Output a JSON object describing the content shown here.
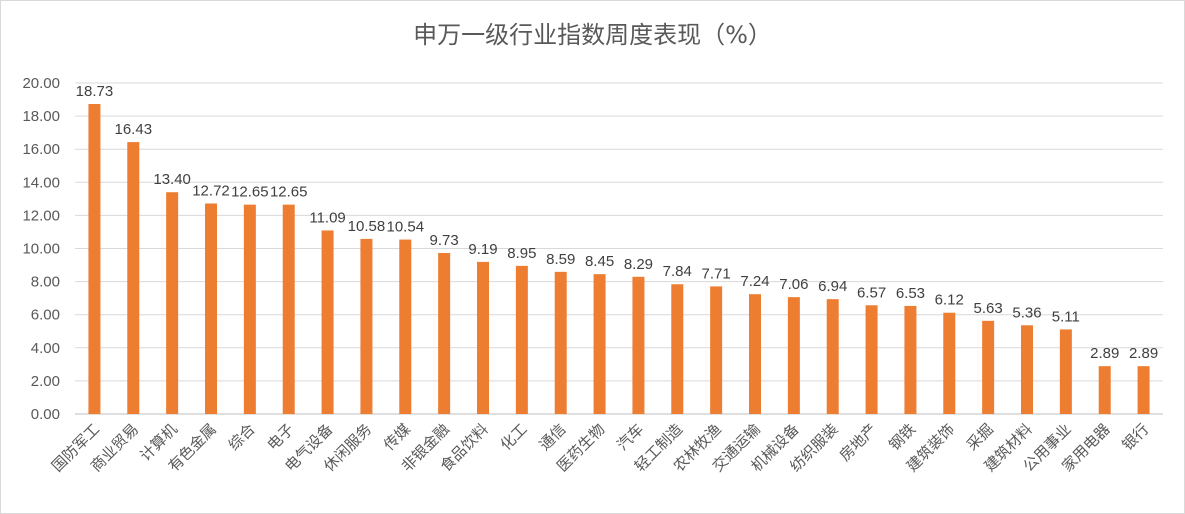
{
  "chart_data": {
    "type": "bar",
    "title": "申万一级行业指数周度表现（%）",
    "xlabel": "",
    "ylabel": "",
    "ylim": [
      0,
      20
    ],
    "ytick_step": 2,
    "ytick_labels": [
      "0.00",
      "2.00",
      "4.00",
      "6.00",
      "8.00",
      "10.00",
      "12.00",
      "14.00",
      "16.00",
      "18.00",
      "20.00"
    ],
    "grid": true,
    "legend": "none",
    "bar_color": "#ED7D31",
    "categories": [
      "国防军工",
      "商业贸易",
      "计算机",
      "有色金属",
      "综合",
      "电子",
      "电气设备",
      "休闲服务",
      "传媒",
      "非银金融",
      "食品饮料",
      "化工",
      "通信",
      "医药生物",
      "汽车",
      "轻工制造",
      "农林牧渔",
      "交通运输",
      "机械设备",
      "纺织服装",
      "房地产",
      "钢铁",
      "建筑装饰",
      "采掘",
      "建筑材料",
      "公用事业",
      "家用电器",
      "银行"
    ],
    "values": [
      18.73,
      16.43,
      13.4,
      12.72,
      12.65,
      12.65,
      11.09,
      10.58,
      10.54,
      9.73,
      9.19,
      8.95,
      8.59,
      8.45,
      8.29,
      7.84,
      7.71,
      7.24,
      7.06,
      6.94,
      6.57,
      6.53,
      6.12,
      5.63,
      5.36,
      5.11,
      2.89,
      2.89
    ],
    "data_labels": [
      "18.73",
      "16.43",
      "13.40",
      "12.72",
      "12.65",
      "12.65",
      "11.09",
      "10.58",
      "10.54",
      "9.73",
      "9.19",
      "8.95",
      "8.59",
      "8.45",
      "8.29",
      "7.84",
      "7.71",
      "7.24",
      "7.06",
      "6.94",
      "6.57",
      "6.53",
      "6.12",
      "5.63",
      "5.36",
      "5.11",
      "2.89",
      "2.89"
    ]
  }
}
